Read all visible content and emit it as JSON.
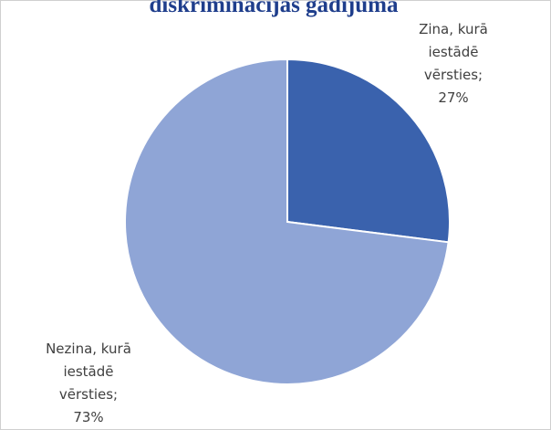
{
  "chart_data": {
    "type": "pie",
    "title": "diskriminācijas gadījumā",
    "categories": [
      "Zina, kurā iestādē vērsties;",
      "Nezina, kurā iestādē vērsties;"
    ],
    "values": [
      27,
      73
    ],
    "value_labels": [
      "27%",
      "73%"
    ],
    "colors": [
      "#3a62ad",
      "#8fa5d6"
    ]
  }
}
